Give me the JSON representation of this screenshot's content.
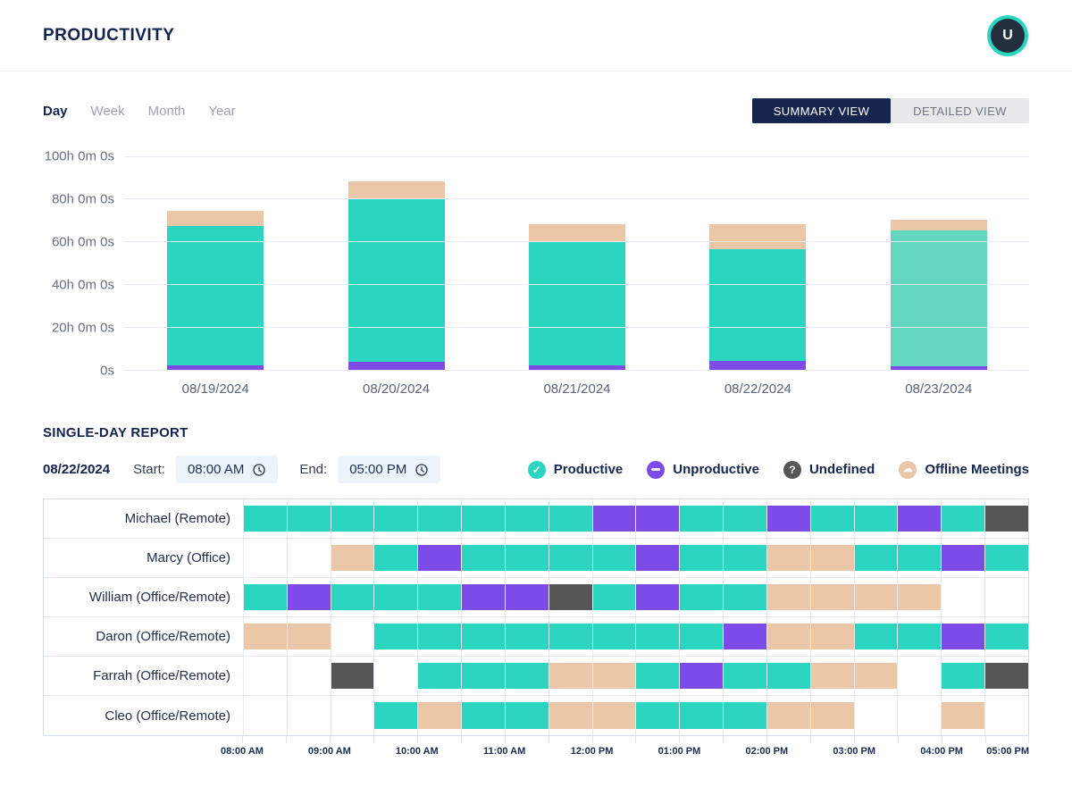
{
  "header": {
    "title": "PRODUCTIVITY",
    "avatar_initial": "U"
  },
  "toolbar": {
    "period_tabs": [
      {
        "label": "Day",
        "active": true
      },
      {
        "label": "Week",
        "active": false
      },
      {
        "label": "Month",
        "active": false
      },
      {
        "label": "Year",
        "active": false
      }
    ],
    "view_toggle": [
      {
        "label": "SUMMARY VIEW",
        "active": true
      },
      {
        "label": "DETAILED VIEW",
        "active": false
      }
    ]
  },
  "colors": {
    "productive": "#2cd5c0",
    "productive_light": "#63d6c0",
    "unproductive": "#7d4be8",
    "undefined": "#565656",
    "offline": "#ebc7a7",
    "accent_navy": "#16254e"
  },
  "chart_data": {
    "type": "bar",
    "stacked": true,
    "unit": "hours",
    "categories": [
      "08/19/2024",
      "08/20/2024",
      "08/21/2024",
      "08/22/2024",
      "08/23/2024"
    ],
    "series": [
      {
        "name": "Unproductive",
        "color": "#7d4be8",
        "values": [
          2.5,
          4,
          2.5,
          4.5,
          2
        ]
      },
      {
        "name": "Productive",
        "color": "#2cd5c0",
        "colors": [
          "#2cd5c0",
          "#2cd5c0",
          "#2cd5c0",
          "#2cd5c0",
          "#63d6c0"
        ],
        "values": [
          65,
          76,
          58,
          52,
          63.5
        ]
      },
      {
        "name": "Offline Meetings",
        "color": "#ebc7a7",
        "values": [
          7,
          8.5,
          8,
          12,
          5
        ]
      }
    ],
    "y_ticks": [
      {
        "value": 100,
        "label": "100h 0m 0s"
      },
      {
        "value": 80,
        "label": "80h 0m 0s"
      },
      {
        "value": 60,
        "label": "60h 0m 0s"
      },
      {
        "value": 40,
        "label": "40h 0m 0s"
      },
      {
        "value": 20,
        "label": "20h 0m 0s"
      },
      {
        "value": 0,
        "label": "0s"
      }
    ],
    "ylim": [
      0,
      100
    ],
    "grid": true,
    "legend_position": "none"
  },
  "report": {
    "title": "SINGLE-DAY REPORT",
    "date": "08/22/2024",
    "start_label": "Start:",
    "start_value": "08:00 AM",
    "end_label": "End:",
    "end_value": "05:00 PM",
    "legend": [
      {
        "label": "Productive",
        "status": "productive",
        "glyph": "check"
      },
      {
        "label": "Unproductive",
        "status": "unproductive",
        "glyph": "minus"
      },
      {
        "label": "Undefined",
        "status": "undefined",
        "glyph": "question"
      },
      {
        "label": "Offline Meetings",
        "status": "offline",
        "glyph": "cloud"
      }
    ],
    "rows": [
      {
        "name": "Michael (Remote)",
        "cells": [
          "productive",
          "productive",
          "productive",
          "productive",
          "productive",
          "productive",
          "productive",
          "productive",
          "unproductive",
          "unproductive",
          "productive",
          "productive",
          "unproductive",
          "productive",
          "productive",
          "unproductive",
          "productive",
          "undefined"
        ]
      },
      {
        "name": "Marcy (Office)",
        "cells": [
          "",
          "",
          "offline",
          "productive",
          "unproductive",
          "productive",
          "productive",
          "productive",
          "productive",
          "unproductive",
          "productive",
          "productive",
          "offline",
          "offline",
          "productive",
          "productive",
          "unproductive",
          "productive"
        ]
      },
      {
        "name": "William (Office/Remote)",
        "cells": [
          "productive",
          "unproductive",
          "productive",
          "productive",
          "productive",
          "unproductive",
          "unproductive",
          "undefined",
          "productive",
          "unproductive",
          "productive",
          "productive",
          "offline",
          "offline",
          "offline",
          "offline",
          "",
          ""
        ]
      },
      {
        "name": "Daron (Office/Remote)",
        "cells": [
          "offline",
          "offline",
          "",
          "productive",
          "productive",
          "productive",
          "productive",
          "productive",
          "productive",
          "productive",
          "productive",
          "unproductive",
          "offline",
          "offline",
          "productive",
          "productive",
          "unproductive",
          "productive"
        ]
      },
      {
        "name": "Farrah (Office/Remote)",
        "cells": [
          "",
          "",
          "undefined",
          "",
          "productive",
          "productive",
          "productive",
          "offline",
          "offline",
          "productive",
          "unproductive",
          "productive",
          "productive",
          "offline",
          "offline",
          "",
          "productive",
          "undefined"
        ]
      },
      {
        "name": "Cleo (Office/Remote)",
        "cells": [
          "",
          "",
          "",
          "productive",
          "offline",
          "productive",
          "productive",
          "offline",
          "offline",
          "productive",
          "productive",
          "productive",
          "offline",
          "offline",
          "",
          "",
          "offline",
          ""
        ]
      }
    ],
    "time_labels": [
      "08:00 AM",
      "09:00 AM",
      "10:00 AM",
      "11:00 AM",
      "12:00 PM",
      "01:00 PM",
      "02:00 PM",
      "03:00 PM",
      "04:00 PM",
      "05:00 PM"
    ]
  }
}
